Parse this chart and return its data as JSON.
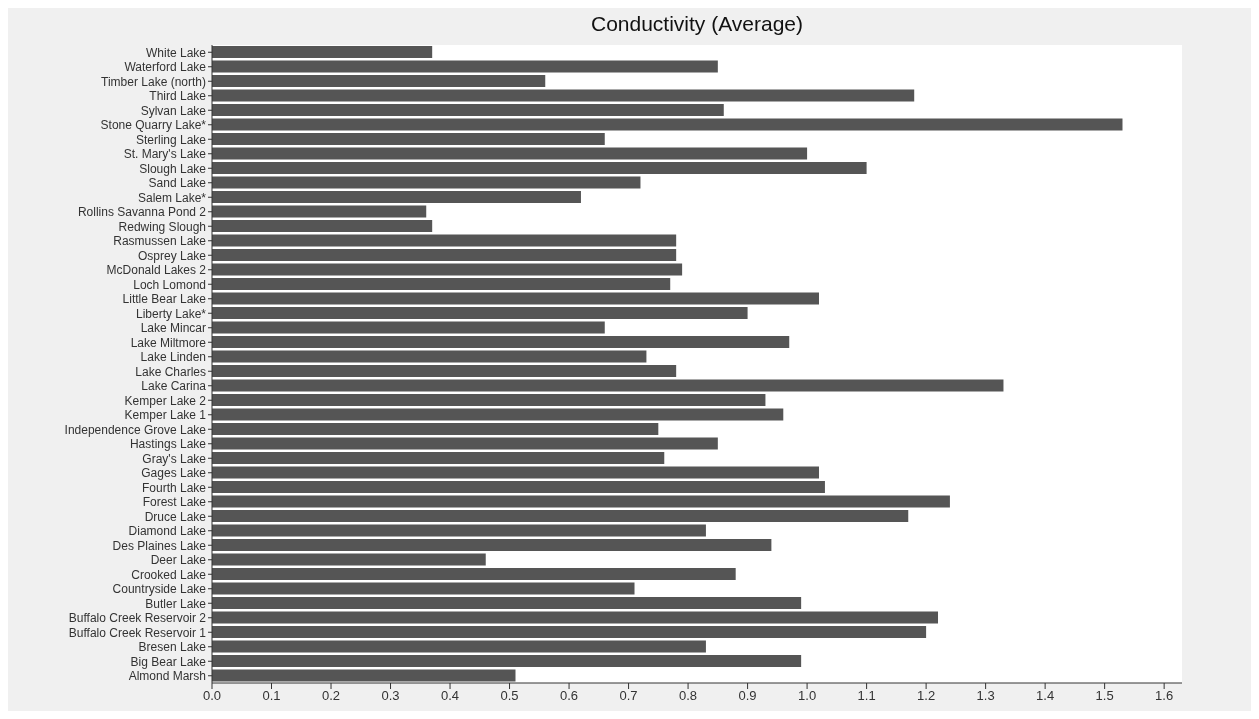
{
  "chart_data": {
    "type": "bar",
    "orientation": "horizontal",
    "title": "Conductivity (Average)",
    "categories": [
      "White Lake",
      "Waterford Lake",
      "Timber Lake (north)",
      "Third Lake",
      "Sylvan Lake",
      "Stone Quarry Lake*",
      "Sterling Lake",
      "St. Mary's Lake",
      "Slough Lake",
      "Sand Lake",
      "Salem Lake*",
      "Rollins Savanna Pond 2",
      "Redwing Slough",
      "Rasmussen Lake",
      "Osprey Lake",
      "McDonald Lakes 2",
      "Loch Lomond",
      "Little Bear Lake",
      "Liberty Lake*",
      "Lake Mincar",
      "Lake Miltmore",
      "Lake Linden",
      "Lake Charles",
      "Lake Carina",
      "Kemper Lake 2",
      "Kemper Lake 1",
      "Independence Grove Lake",
      "Hastings Lake",
      "Gray's Lake",
      "Gages Lake",
      "Fourth Lake",
      "Forest Lake",
      "Druce Lake",
      "Diamond Lake",
      "Des Plaines Lake",
      "Deer Lake",
      "Crooked Lake",
      "Countryside Lake",
      "Butler Lake",
      "Buffalo Creek Reservoir 2",
      "Buffalo Creek Reservoir 1",
      "Bresen Lake",
      "Big Bear Lake",
      "Almond Marsh"
    ],
    "values": [
      0.37,
      0.85,
      0.56,
      1.18,
      0.86,
      1.53,
      0.66,
      1.0,
      1.1,
      0.72,
      0.62,
      0.36,
      0.37,
      0.78,
      0.78,
      0.79,
      0.77,
      1.02,
      0.9,
      0.66,
      0.97,
      0.73,
      0.78,
      1.33,
      0.93,
      0.96,
      0.75,
      0.85,
      0.76,
      1.02,
      1.03,
      1.24,
      1.17,
      0.83,
      0.94,
      0.46,
      0.88,
      0.71,
      0.99,
      1.22,
      1.2,
      0.83,
      0.99,
      0.51
    ],
    "color": "#555555",
    "xlim": [
      0,
      1.63
    ],
    "xticks": [
      {
        "value": 0,
        "label": "0.0"
      },
      0.1,
      0.2,
      0.3,
      0.4,
      0.5,
      0.6,
      0.7,
      0.8,
      0.9,
      {
        "value": 1,
        "label": "1.0"
      },
      1.1,
      1.2,
      1.3,
      1.4,
      1.5,
      1.6
    ],
    "grid": false
  }
}
